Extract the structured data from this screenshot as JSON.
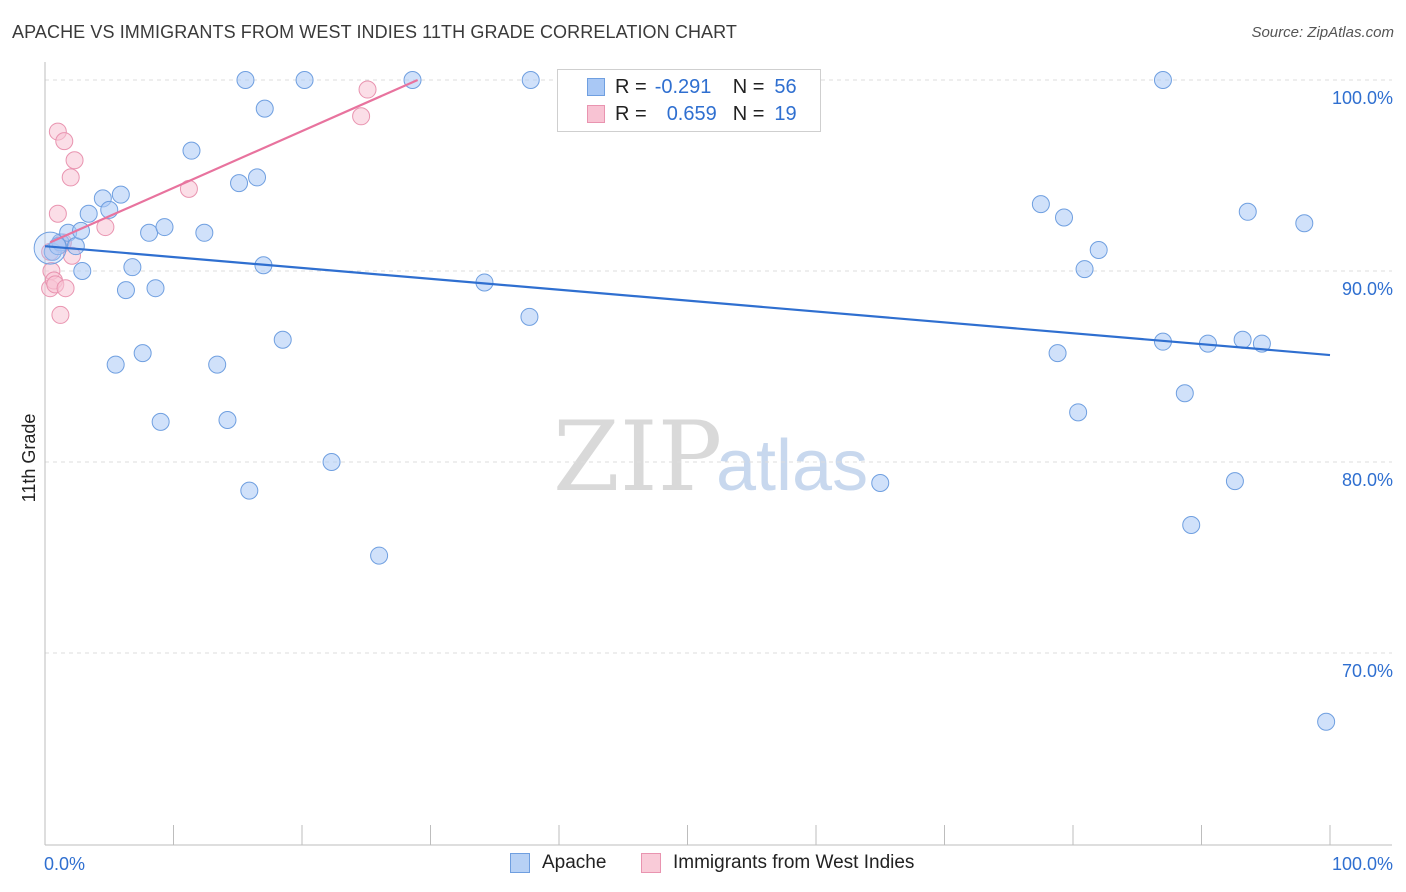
{
  "title": "APACHE VS IMMIGRANTS FROM WEST INDIES 11TH GRADE CORRELATION CHART",
  "source": "Source: ZipAtlas.com",
  "watermark": {
    "zip": "ZIP",
    "atlas": "atlas"
  },
  "legend": {
    "r_label": "R =",
    "n_label": "N =",
    "rows": [
      {
        "r": "-0.291",
        "n": "56",
        "color": "#a9c8f5",
        "border": "#6f9fe0"
      },
      {
        "r": "0.659",
        "n": "19",
        "color": "#f8c3d3",
        "border": "#e994b0"
      }
    ]
  },
  "bottom_legend": [
    {
      "label": "Apache",
      "color": "#b7d1f5",
      "border": "#6f9fe0"
    },
    {
      "label": "Immigrants from West Indies",
      "color": "#f9cbd8",
      "border": "#e994b0"
    }
  ],
  "chart_data": {
    "type": "scatter",
    "title": "APACHE VS IMMIGRANTS FROM WEST INDIES 11TH GRADE CORRELATION CHART",
    "xlabel": "",
    "ylabel": "11th Grade",
    "xlim": [
      0,
      100
    ],
    "ylim": [
      60.5,
      101.5
    ],
    "x_tick_labels": [
      "0.0%",
      "100.0%"
    ],
    "y_ticks": [
      100,
      90,
      80,
      70
    ],
    "y_tick_labels": [
      "100.0%",
      "90.0%",
      "80.0%",
      "70.0%"
    ],
    "grid": true,
    "series": [
      {
        "name": "Apache",
        "color": "#a9c8f5",
        "stroke": "#6f9fe0",
        "trend": {
          "x": [
            0,
            100
          ],
          "y": [
            91.3,
            85.6
          ],
          "color": "#2f6fd0"
        },
        "points": [
          [
            0.6,
            91.0
          ],
          [
            1.2,
            91.5
          ],
          [
            1.8,
            92.0
          ],
          [
            2.4,
            91.3
          ],
          [
            2.9,
            90.0
          ],
          [
            3.4,
            93.0
          ],
          [
            4.5,
            93.8
          ],
          [
            5.0,
            93.2
          ],
          [
            5.9,
            94.0
          ],
          [
            2.8,
            92.1
          ],
          [
            6.3,
            89.0
          ],
          [
            6.8,
            90.2
          ],
          [
            8.1,
            92.0
          ],
          [
            7.6,
            85.7
          ],
          [
            5.5,
            85.1
          ],
          [
            9.3,
            92.3
          ],
          [
            8.6,
            89.1
          ],
          [
            9.0,
            82.1
          ],
          [
            11.4,
            96.3
          ],
          [
            12.4,
            92.0
          ],
          [
            13.4,
            85.1
          ],
          [
            14.2,
            82.2
          ],
          [
            15.1,
            94.6
          ],
          [
            15.9,
            78.5
          ],
          [
            16.5,
            94.9
          ],
          [
            17.0,
            90.3
          ],
          [
            15.6,
            100.0
          ],
          [
            17.1,
            98.5
          ],
          [
            18.5,
            86.4
          ],
          [
            20.2,
            100.0
          ],
          [
            22.3,
            80.0
          ],
          [
            26.0,
            75.1
          ],
          [
            28.6,
            100.0
          ],
          [
            34.2,
            89.4
          ],
          [
            37.7,
            87.6
          ],
          [
            37.8,
            100.0
          ],
          [
            43.0,
            100.0
          ],
          [
            65.0,
            78.9
          ],
          [
            77.5,
            93.5
          ],
          [
            78.8,
            85.7
          ],
          [
            79.3,
            92.8
          ],
          [
            80.4,
            82.6
          ],
          [
            80.9,
            90.1
          ],
          [
            82.0,
            91.1
          ],
          [
            87.0,
            100.0
          ],
          [
            87.0,
            86.3
          ],
          [
            88.7,
            83.6
          ],
          [
            89.2,
            76.7
          ],
          [
            90.5,
            86.2
          ],
          [
            92.6,
            79.0
          ],
          [
            93.2,
            86.4
          ],
          [
            94.7,
            86.2
          ],
          [
            93.6,
            93.1
          ],
          [
            98.0,
            92.5
          ],
          [
            99.7,
            66.4
          ],
          [
            1.0,
            91.3
          ]
        ]
      },
      {
        "name": "Immigrants from West Indies",
        "color": "#f8c3d3",
        "stroke": "#e994b0",
        "trend": {
          "x": [
            0.4,
            29.0
          ],
          "y": [
            91.5,
            100.0
          ],
          "color": "#e8739e"
        },
        "points": [
          [
            0.4,
            91.0
          ],
          [
            0.4,
            89.1
          ],
          [
            0.5,
            90.0
          ],
          [
            0.7,
            89.5
          ],
          [
            0.8,
            89.3
          ],
          [
            1.0,
            93.0
          ],
          [
            1.0,
            97.3
          ],
          [
            1.2,
            87.7
          ],
          [
            1.3,
            91.4
          ],
          [
            1.4,
            91.5
          ],
          [
            1.5,
            96.8
          ],
          [
            1.6,
            89.1
          ],
          [
            2.0,
            94.9
          ],
          [
            2.1,
            90.8
          ],
          [
            2.3,
            95.8
          ],
          [
            4.7,
            92.3
          ],
          [
            11.2,
            94.3
          ],
          [
            24.6,
            98.1
          ],
          [
            25.1,
            99.5
          ]
        ]
      }
    ]
  }
}
